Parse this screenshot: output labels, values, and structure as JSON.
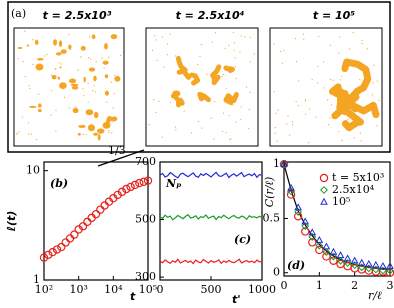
{
  "chart_data": [
    {
      "type": "image",
      "panel": "(a)",
      "titles": [
        "t = 2.5x10³",
        "t = 2.5x10⁴",
        "t = 10⁵"
      ],
      "color": "#f5a524"
    },
    {
      "type": "scatter",
      "panel": "(b)",
      "xlabel": "t",
      "ylabel": "ℓ(t)",
      "annotation": "1/3",
      "xscale": "log",
      "yscale": "log",
      "xlim": [
        100,
        100000
      ],
      "ylim": [
        1,
        12
      ],
      "xticks": [
        {
          "value": 100,
          "label": "10²"
        },
        {
          "value": 1000,
          "label": "10³"
        },
        {
          "value": 10000,
          "label": "10⁴"
        },
        {
          "value": 100000,
          "label": "10⁵"
        }
      ],
      "yticks": [
        1,
        10
      ],
      "x": [
        100,
        133,
        178,
        237,
        316,
        422,
        562,
        750,
        1000,
        1334,
        1778,
        2371,
        3162,
        4217,
        5623,
        7499,
        10000,
        13335,
        17783,
        23714,
        31623,
        42170,
        56234,
        74989,
        100000
      ],
      "series": [
        {
          "color": "#e8201a",
          "marker": "circle",
          "values": [
            1.6,
            1.7,
            1.8,
            1.9,
            2.0,
            2.2,
            2.4,
            2.6,
            2.9,
            3.1,
            3.4,
            3.7,
            4.0,
            4.4,
            4.8,
            5.2,
            5.6,
            6.0,
            6.4,
            6.8,
            7.1,
            7.4,
            7.7,
            7.9,
            8.1
          ]
        }
      ]
    },
    {
      "type": "line",
      "panel": "(c)",
      "xlabel": "t'",
      "ylabel": "Nₚ",
      "xlim": [
        0,
        1000
      ],
      "ylim": [
        290,
        700
      ],
      "xticks": [
        0,
        500,
        1000
      ],
      "yticks": [
        300,
        500,
        700
      ],
      "x": [
        0,
        25,
        50,
        75,
        100,
        125,
        150,
        175,
        200,
        225,
        250,
        275,
        300,
        325,
        350,
        375,
        400,
        425,
        450,
        475,
        500,
        525,
        550,
        575,
        600,
        625,
        650,
        675,
        700,
        725,
        750,
        775,
        800,
        825,
        850,
        875,
        900,
        925,
        950,
        975,
        1000
      ],
      "series": [
        {
          "color": "#1f2bd6",
          "values": [
            655,
            660,
            648,
            652,
            663,
            657,
            650,
            645,
            658,
            661,
            654,
            649,
            656,
            662,
            651,
            647,
            659,
            653,
            660,
            655,
            648,
            657,
            664,
            652,
            650,
            656,
            661,
            646,
            654,
            659,
            651,
            657,
            663,
            649,
            655,
            658,
            652,
            660,
            647,
            656,
            654
          ]
        },
        {
          "color": "#1a9a2a",
          "values": [
            510,
            504,
            515,
            508,
            512,
            499,
            506,
            514,
            509,
            503,
            511,
            517,
            505,
            508,
            513,
            502,
            510,
            507,
            516,
            504,
            509,
            512,
            500,
            511,
            506,
            515,
            508,
            503,
            510,
            514,
            507,
            505,
            512,
            509,
            501,
            513,
            508,
            510,
            506,
            511,
            509
          ]
        },
        {
          "color": "#e8201a",
          "values": [
            355,
            350,
            360,
            353,
            348,
            357,
            352,
            362,
            349,
            354,
            358,
            351,
            356,
            347,
            359,
            353,
            350,
            361,
            355,
            349,
            357,
            352,
            354,
            360,
            348,
            356,
            351,
            358,
            353,
            350,
            355,
            362,
            349,
            354,
            357,
            352,
            356,
            350,
            359,
            353,
            355
          ]
        }
      ]
    },
    {
      "type": "scatter",
      "panel": "(d)",
      "xlabel": "r/ℓ",
      "ylabel": "C(r/ℓ)",
      "xlim": [
        0,
        3
      ],
      "ylim": [
        -0.03,
        1.02
      ],
      "xticks": [
        0,
        1,
        2,
        3
      ],
      "yticks": [
        0,
        0.5,
        1
      ],
      "legend": "upper right",
      "x": [
        0,
        0.2,
        0.4,
        0.6,
        0.8,
        1.0,
        1.2,
        1.4,
        1.6,
        1.8,
        2.0,
        2.2,
        2.4,
        2.6,
        2.8,
        3.0
      ],
      "series": [
        {
          "name": "t = 5x10³",
          "color": "#e8201a",
          "marker": "circle",
          "values": [
            1,
            0.72,
            0.52,
            0.38,
            0.28,
            0.21,
            0.15,
            0.11,
            0.08,
            0.06,
            0.04,
            0.03,
            0.02,
            0.01,
            0.01,
            0.0
          ]
        },
        {
          "name": "2.5x10⁴",
          "color": "#1a9a2a",
          "marker": "diamond",
          "values": [
            1,
            0.75,
            0.56,
            0.43,
            0.33,
            0.25,
            0.19,
            0.15,
            0.11,
            0.09,
            0.07,
            0.05,
            0.04,
            0.03,
            0.02,
            0.02
          ]
        },
        {
          "name": "10⁵",
          "color": "#1f2bd6",
          "marker": "triangle",
          "values": [
            1,
            0.78,
            0.6,
            0.47,
            0.37,
            0.3,
            0.24,
            0.19,
            0.16,
            0.13,
            0.11,
            0.09,
            0.08,
            0.07,
            0.06,
            0.06
          ]
        }
      ],
      "fit": {
        "color": "#000000",
        "values": [
          1,
          0.76,
          0.57,
          0.44,
          0.34,
          0.26,
          0.2,
          0.155,
          0.12,
          0.095,
          0.075,
          0.06,
          0.048,
          0.04,
          0.033,
          0.028
        ]
      }
    }
  ]
}
